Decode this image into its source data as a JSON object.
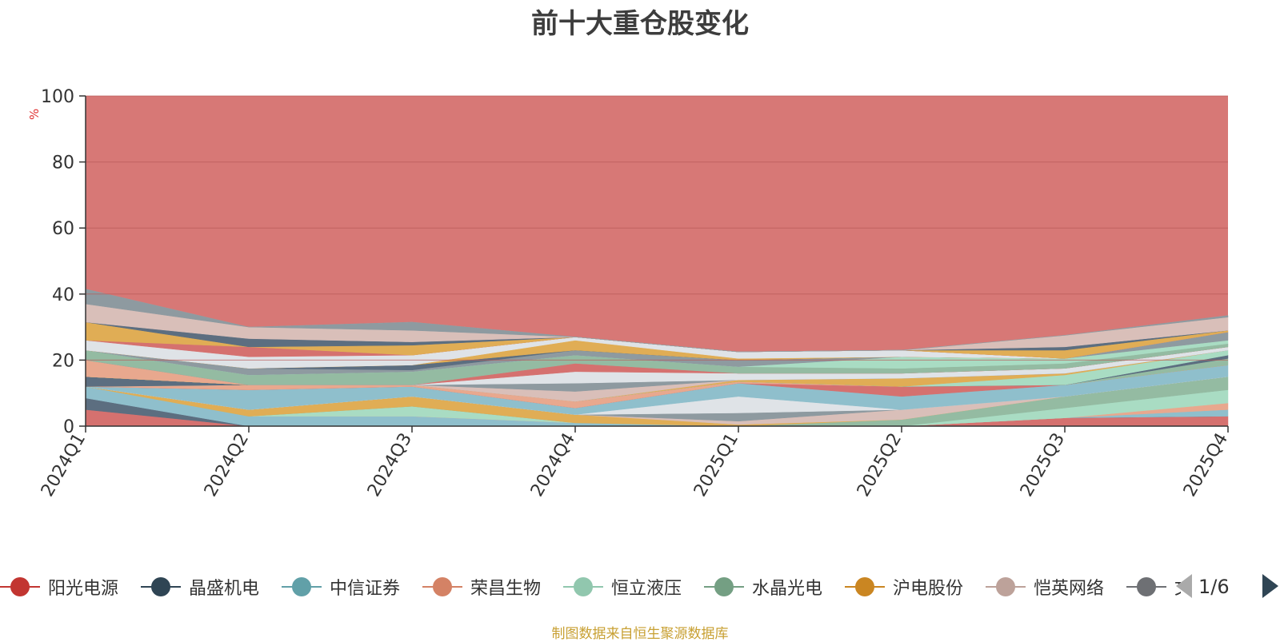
{
  "chart_data": {
    "type": "area",
    "title": "前十大重仓股变化",
    "ylabel": "%",
    "ylim": [
      0,
      100
    ],
    "yticks": [
      0,
      20,
      40,
      60,
      80,
      100
    ],
    "categories": [
      "2024Q1",
      "2024Q2",
      "2024Q3",
      "2024Q4",
      "2025Q1",
      "2025Q2",
      "2025Q3",
      "2025Q4"
    ],
    "stack_bands": [
      {
        "color": "#d5716f",
        "values": [
          5,
          0,
          0,
          0,
          0,
          0,
          2.5,
          3
        ]
      },
      {
        "color": "#5c6e80",
        "values": [
          3.5,
          0,
          0,
          0,
          0,
          0,
          0,
          0
        ]
      },
      {
        "color": "#8fbfcc",
        "values": [
          3.5,
          3,
          3,
          1,
          0,
          0,
          0,
          2
        ]
      },
      {
        "color": "#e8a88e",
        "values": [
          0,
          0,
          0,
          0,
          0,
          0,
          0,
          2
        ]
      },
      {
        "color": "#a9dcc3",
        "values": [
          0,
          0,
          3,
          0,
          0,
          0,
          3,
          4
        ]
      },
      {
        "color": "#94bba2",
        "values": [
          0,
          0,
          0,
          0,
          0,
          2,
          3.5,
          4
        ]
      },
      {
        "color": "#e0ad55",
        "values": [
          0,
          2,
          3,
          2.5,
          0.5,
          0,
          0,
          0
        ]
      },
      {
        "color": "#d9bfb9",
        "values": [
          0,
          0,
          0,
          0,
          1,
          3,
          0,
          0
        ]
      },
      {
        "color": "#8e9aa0",
        "values": [
          0,
          0,
          0,
          0,
          2.5,
          0,
          0,
          0
        ]
      },
      {
        "color": "#dfe3e7",
        "values": [
          0,
          0,
          0,
          0,
          5,
          0,
          0,
          0
        ]
      },
      {
        "color": "#8fbfcc",
        "values": [
          0,
          6,
          3,
          2,
          4,
          4,
          3.5,
          3.5
        ]
      },
      {
        "color": "#d5716f",
        "values": [
          0,
          0,
          0,
          0,
          0,
          3,
          0,
          0
        ]
      },
      {
        "color": "#e8a88e",
        "values": [
          0,
          1.5,
          0.5,
          2,
          0.5,
          0,
          0,
          0
        ]
      },
      {
        "color": "#94bba2",
        "values": [
          0,
          0,
          0,
          0,
          0,
          0,
          0,
          2
        ]
      },
      {
        "color": "#5c6e80",
        "values": [
          3,
          0,
          0,
          0,
          0,
          0,
          0,
          1
        ]
      },
      {
        "color": "#a9dcc3",
        "values": [
          0,
          0,
          0,
          0,
          0,
          0,
          3,
          1.5
        ]
      },
      {
        "color": "#e0ad55",
        "values": [
          0,
          0,
          0,
          0,
          0.5,
          2.5,
          0.5,
          0
        ]
      },
      {
        "color": "#e8a88e",
        "values": [
          5,
          0,
          0,
          0,
          0,
          0,
          0,
          0
        ]
      },
      {
        "color": "#d9bfb9",
        "values": [
          0,
          0,
          0,
          3,
          0,
          0,
          0,
          0
        ]
      },
      {
        "color": "#8e9aa0",
        "values": [
          0,
          0,
          0,
          2.5,
          0,
          0,
          0,
          0
        ]
      },
      {
        "color": "#dfe3e7",
        "values": [
          0,
          0,
          0,
          3.5,
          2,
          1.5,
          1.5,
          1
        ]
      },
      {
        "color": "#d5716f",
        "values": [
          0,
          0,
          0,
          2.5,
          0,
          0,
          0,
          0
        ]
      },
      {
        "color": "#94bba2",
        "values": [
          3,
          3,
          4,
          2.5,
          2,
          1.5,
          1.5,
          1
        ]
      },
      {
        "color": "#a9dcc3",
        "values": [
          0,
          0,
          0,
          0,
          0,
          3.5,
          1.5,
          1
        ]
      },
      {
        "color": "#8e9aa0",
        "values": [
          0,
          2,
          0.5,
          1.5,
          2,
          0,
          0,
          2.5
        ]
      },
      {
        "color": "#5c6e80",
        "values": [
          0,
          0,
          1.5,
          0,
          0,
          0,
          0,
          0
        ]
      },
      {
        "color": "#e0ad55",
        "values": [
          0,
          0,
          0,
          3,
          0.5,
          0,
          0,
          0
        ]
      },
      {
        "color": "#dfe3e7",
        "values": [
          3,
          3.5,
          3,
          1,
          2,
          2,
          0,
          0
        ]
      },
      {
        "color": "#d5716f",
        "values": [
          0,
          3,
          0,
          0,
          0,
          0,
          0,
          0
        ]
      },
      {
        "color": "#e0ad55",
        "values": [
          5.5,
          0,
          3,
          0,
          0,
          0,
          2.5,
          0.5
        ]
      },
      {
        "color": "#5c6e80",
        "values": [
          0,
          2.5,
          1,
          0,
          0,
          0,
          1,
          0
        ]
      },
      {
        "color": "#d9bfb9",
        "values": [
          5.5,
          3.5,
          3.5,
          0,
          0,
          0,
          3.5,
          4
        ]
      },
      {
        "color": "#8e9aa0",
        "values": [
          4.5,
          0,
          2.5,
          0,
          0,
          0,
          0,
          0.5
        ]
      }
    ],
    "top_color": "#d5716f",
    "top_value": 100,
    "legend": [
      {
        "label": "阳光电源",
        "color": "#c23531"
      },
      {
        "label": "晶盛机电",
        "color": "#2f4554"
      },
      {
        "label": "中信证券",
        "color": "#61a0a8"
      },
      {
        "label": "荣昌生物",
        "color": "#d48265"
      },
      {
        "label": "恒立液压",
        "color": "#91c7ae"
      },
      {
        "label": "水晶光电",
        "color": "#749f83"
      },
      {
        "label": "沪电股份",
        "color": "#ca8622"
      },
      {
        "label": "恺英网络",
        "color": "#bda29a"
      },
      {
        "label": "",
        "color": "#6e7074"
      }
    ],
    "legend_partial_glyph": "文"
  },
  "legend_page": "1/6",
  "source": "制图数据来自恒生聚源数据库",
  "icons": {
    "prev": "triangle-left-icon",
    "next": "triangle-right-icon"
  }
}
